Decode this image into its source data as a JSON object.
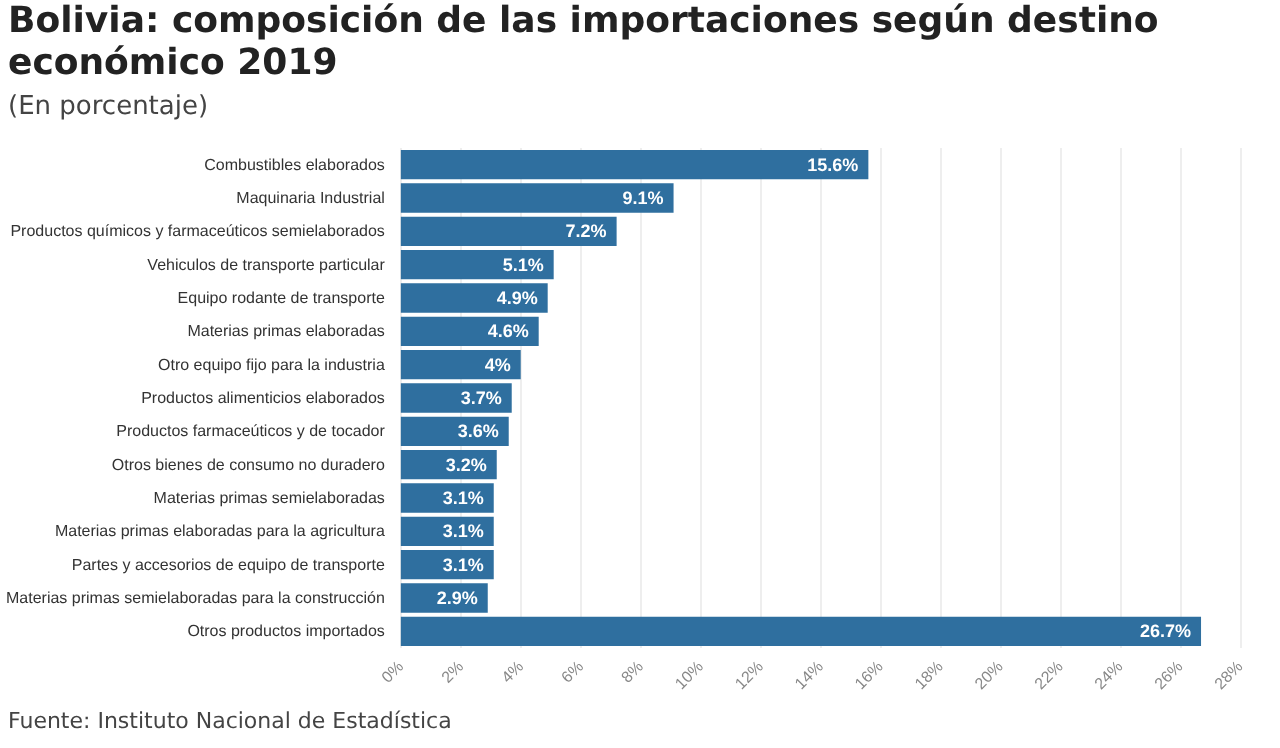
{
  "chart_data": {
    "type": "bar",
    "orientation": "horizontal",
    "title": "Bolivia: composición de las importaciones según destino económico 2019",
    "subtitle": "(En porcentaje)",
    "categories": [
      "Combustibles elaborados",
      "Maquinaria Industrial",
      "Productos químicos y farmaceúticos semielaborados",
      "Vehiculos de transporte particular",
      "Equipo rodante de transporte",
      "Materias primas elaboradas",
      "Otro equipo fijo para la industria",
      "Productos alimenticios elaborados",
      "Productos farmaceúticos y de tocador",
      "Otros bienes de consumo no duradero",
      "Materias primas semielaboradas",
      "Materias primas elaboradas para la agricultura",
      "Partes y accesorios de equipo de transporte",
      "Materias primas semielaboradas para la construcción",
      "Otros productos importados"
    ],
    "values": [
      15.6,
      9.1,
      7.2,
      5.1,
      4.9,
      4.6,
      4,
      3.7,
      3.6,
      3.2,
      3.1,
      3.1,
      3.1,
      2.9,
      26.7
    ],
    "value_labels": [
      "15.6%",
      "9.1%",
      "7.2%",
      "5.1%",
      "4.9%",
      "4.6%",
      "4%",
      "3.7%",
      "3.6%",
      "3.2%",
      "3.1%",
      "3.1%",
      "3.1%",
      "2.9%",
      "26.7%"
    ],
    "color": "#2f6f9f",
    "xlim": [
      0,
      28
    ],
    "xticks": [
      {
        "value": 0,
        "label": "0%"
      },
      {
        "value": 2,
        "label": "2%"
      },
      {
        "value": 4,
        "label": "4%"
      },
      {
        "value": 6,
        "label": "6%"
      },
      {
        "value": 8,
        "label": "8%"
      },
      {
        "value": 10,
        "label": "10%"
      },
      {
        "value": 12,
        "label": "12%"
      },
      {
        "value": 14,
        "label": "14%"
      },
      {
        "value": 16,
        "label": "16%"
      },
      {
        "value": 18,
        "label": "18%"
      },
      {
        "value": 20,
        "label": "20%"
      },
      {
        "value": 22,
        "label": "22%"
      },
      {
        "value": 24,
        "label": "24%"
      },
      {
        "value": 26,
        "label": "26%"
      },
      {
        "value": 28,
        "label": "28%"
      }
    ],
    "grid": "x",
    "annotations": [
      "Fuente: Instituto Nacional de Estadística"
    ]
  }
}
